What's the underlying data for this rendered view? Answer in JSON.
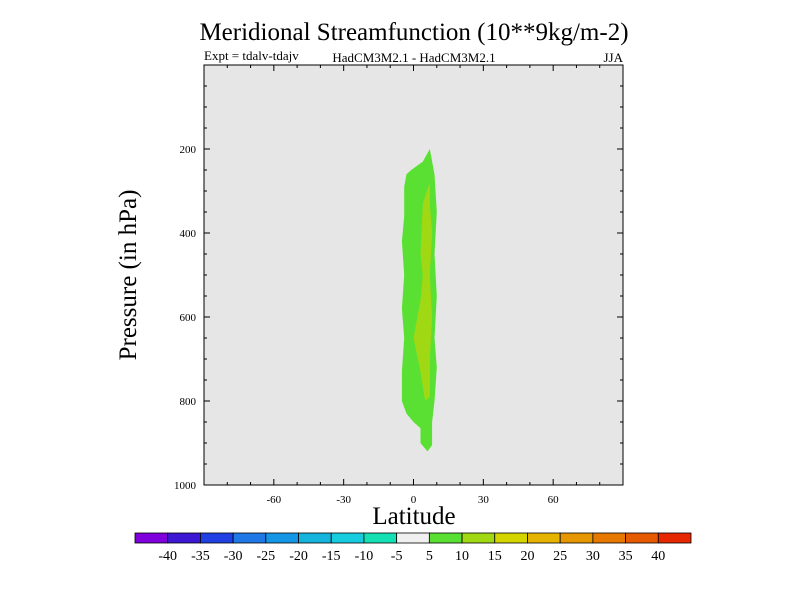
{
  "chart_data": {
    "type": "heatmap",
    "title": "Meridional Streamfunction (10**9kg/m-2)",
    "subtitle_left": "Expt = tdalv-tdajv",
    "subtitle_center": "HadCM3M2.1 - HadCM3M2.1",
    "subtitle_right": "JJA",
    "xlabel": "Latitude",
    "ylabel": "Pressure (in hPa)",
    "xlim": [
      -90,
      90
    ],
    "ylim": [
      0,
      1000
    ],
    "y_inverted": true,
    "xticks": [
      -60,
      -30,
      0,
      30,
      60
    ],
    "xtick_labels": [
      "-60",
      "-30",
      "0",
      "30",
      "60"
    ],
    "yticks": [
      200,
      400,
      600,
      800,
      1000
    ],
    "ytick_labels": [
      "200",
      "400",
      "600",
      "800",
      "1000"
    ],
    "colorbar": {
      "colors": [
        "#7f00dc",
        "#3c18d4",
        "#2040e4",
        "#1e78e6",
        "#1496e6",
        "#14b4dc",
        "#18cce0",
        "#14e0b4",
        "#f0f0f0",
        "#5ae032",
        "#a0d814",
        "#d4d400",
        "#e6b400",
        "#e69600",
        "#e67800",
        "#e65a00",
        "#e62800"
      ],
      "levels": [
        -40,
        -35,
        -30,
        -25,
        -20,
        -15,
        -10,
        -5,
        5,
        10,
        15,
        20,
        25,
        30,
        35,
        40
      ],
      "level_labels": [
        "-40",
        "-35",
        "-30",
        "-25",
        "-20",
        "-15",
        "-10",
        "-5",
        "5",
        "10",
        "15",
        "20",
        "25",
        "30",
        "35",
        "40"
      ]
    },
    "background_color": "#e6e6e6",
    "filled_contours": [
      {
        "level_range": "5 to 10",
        "color": "#5ae032",
        "points": [
          [
            7,
            200
          ],
          [
            4,
            230
          ],
          [
            -1,
            250
          ],
          [
            -3,
            260
          ],
          [
            -4,
            290
          ],
          [
            -4,
            360
          ],
          [
            -5,
            420
          ],
          [
            -4,
            500
          ],
          [
            -5,
            580
          ],
          [
            -4,
            650
          ],
          [
            -5,
            730
          ],
          [
            -5,
            800
          ],
          [
            -3,
            830
          ],
          [
            0,
            850
          ],
          [
            3,
            865
          ],
          [
            3,
            900
          ],
          [
            6,
            920
          ],
          [
            8,
            905
          ],
          [
            8,
            850
          ],
          [
            9,
            800
          ],
          [
            10,
            720
          ],
          [
            9,
            650
          ],
          [
            10,
            550
          ],
          [
            9,
            450
          ],
          [
            10,
            350
          ],
          [
            9,
            260
          ]
        ]
      },
      {
        "level_range": "10 to 15",
        "color": "#a0d814",
        "points": [
          [
            7,
            280
          ],
          [
            4,
            330
          ],
          [
            3,
            450
          ],
          [
            4,
            500
          ],
          [
            3,
            560
          ],
          [
            0,
            650
          ],
          [
            3,
            730
          ],
          [
            5,
            800
          ],
          [
            7,
            790
          ],
          [
            7,
            700
          ],
          [
            8,
            600
          ],
          [
            7,
            500
          ],
          [
            8,
            400
          ],
          [
            7,
            330
          ]
        ]
      }
    ]
  }
}
